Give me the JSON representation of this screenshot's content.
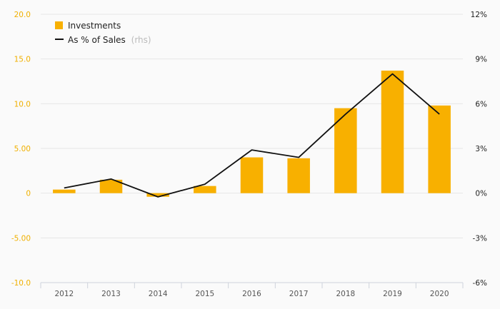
{
  "chart_data": {
    "type": "bar",
    "categories": [
      "2012",
      "2013",
      "2014",
      "2015",
      "2016",
      "2017",
      "2018",
      "2019",
      "2020"
    ],
    "series": [
      {
        "name": "Investments",
        "type": "bar",
        "axis": "left",
        "color": "#f8b000",
        "values": [
          0.4,
          1.5,
          -0.4,
          0.8,
          4.0,
          3.9,
          9.5,
          13.7,
          9.8
        ]
      },
      {
        "name": "As % of Sales",
        "legend_note": "(rhs)",
        "type": "line",
        "axis": "right",
        "color": "#111111",
        "values": [
          0.35,
          0.95,
          -0.25,
          0.6,
          2.9,
          2.4,
          5.3,
          8.0,
          5.3
        ]
      }
    ],
    "ylim": [
      -10,
      20
    ],
    "y_ticks": [
      "20.0",
      "15.0",
      "10.0",
      "5.00",
      "0",
      "-5.00",
      "-10.0"
    ],
    "y_tick_values": [
      20,
      15,
      10,
      5,
      0,
      -5,
      -10
    ],
    "y2lim": [
      -6,
      12
    ],
    "y2_ticks": [
      "12%",
      "9%",
      "6%",
      "3%",
      "0%",
      "-3%",
      "-6%"
    ],
    "y2_tick_values": [
      12,
      9,
      6,
      3,
      0,
      -3,
      -6
    ],
    "grid": true,
    "legend_position": "top-left",
    "left_axis_color": "#f0b000",
    "right_axis_color": "#222222"
  }
}
